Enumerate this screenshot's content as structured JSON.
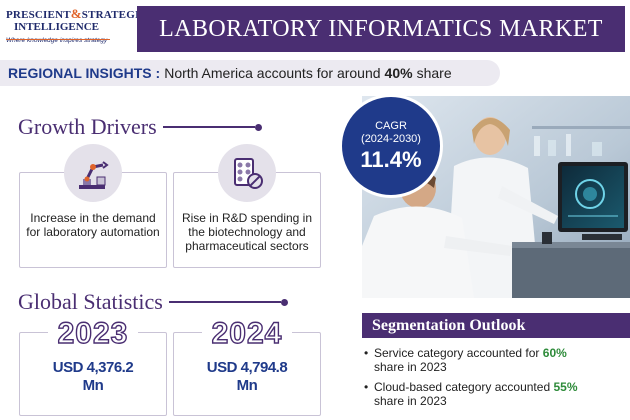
{
  "logo": {
    "line1_a": "PRESCIENT",
    "amp": "&",
    "line1_b": "STRATEGIC",
    "line2": "INTELLIGENCE",
    "tagline": "Where knowledge inspires strategy"
  },
  "title": "LABORATORY INFORMATICS MARKET",
  "regional": {
    "label": "REGIONAL INSIGHTS :",
    "text": "North America accounts for around",
    "value": "40%",
    "suffix": "share"
  },
  "growth_drivers": {
    "heading": "Growth Drivers",
    "items": [
      {
        "icon": "robot-arm-icon",
        "text": "Increase in the demand for laboratory automation"
      },
      {
        "icon": "pills-icon",
        "text": "Rise in R&D spending in the biotechnology and pharmaceutical sectors"
      }
    ]
  },
  "cagr": {
    "label": "CAGR",
    "period": "(2024-2030)",
    "value": "11.4%"
  },
  "global_statistics": {
    "heading": "Global Statistics",
    "items": [
      {
        "year": "2023",
        "value_line1": "USD 4,376.2",
        "value_line2": "Mn"
      },
      {
        "year": "2024",
        "value_line1": "USD 4,794.8",
        "value_line2": "Mn"
      }
    ]
  },
  "segmentation": {
    "heading": "Segmentation Outlook",
    "items": [
      {
        "pre": "Service category accounted for",
        "highlight": "60%",
        "post": "share in 2023"
      },
      {
        "pre": "Cloud-based category accounted",
        "highlight": "55%",
        "post": "share in 2023"
      }
    ]
  },
  "colors": {
    "primary_purple": "#4a2e72",
    "accent_blue": "#1f3a8a",
    "highlight_green": "#2e8b3a",
    "logo_orange": "#e0632a"
  }
}
